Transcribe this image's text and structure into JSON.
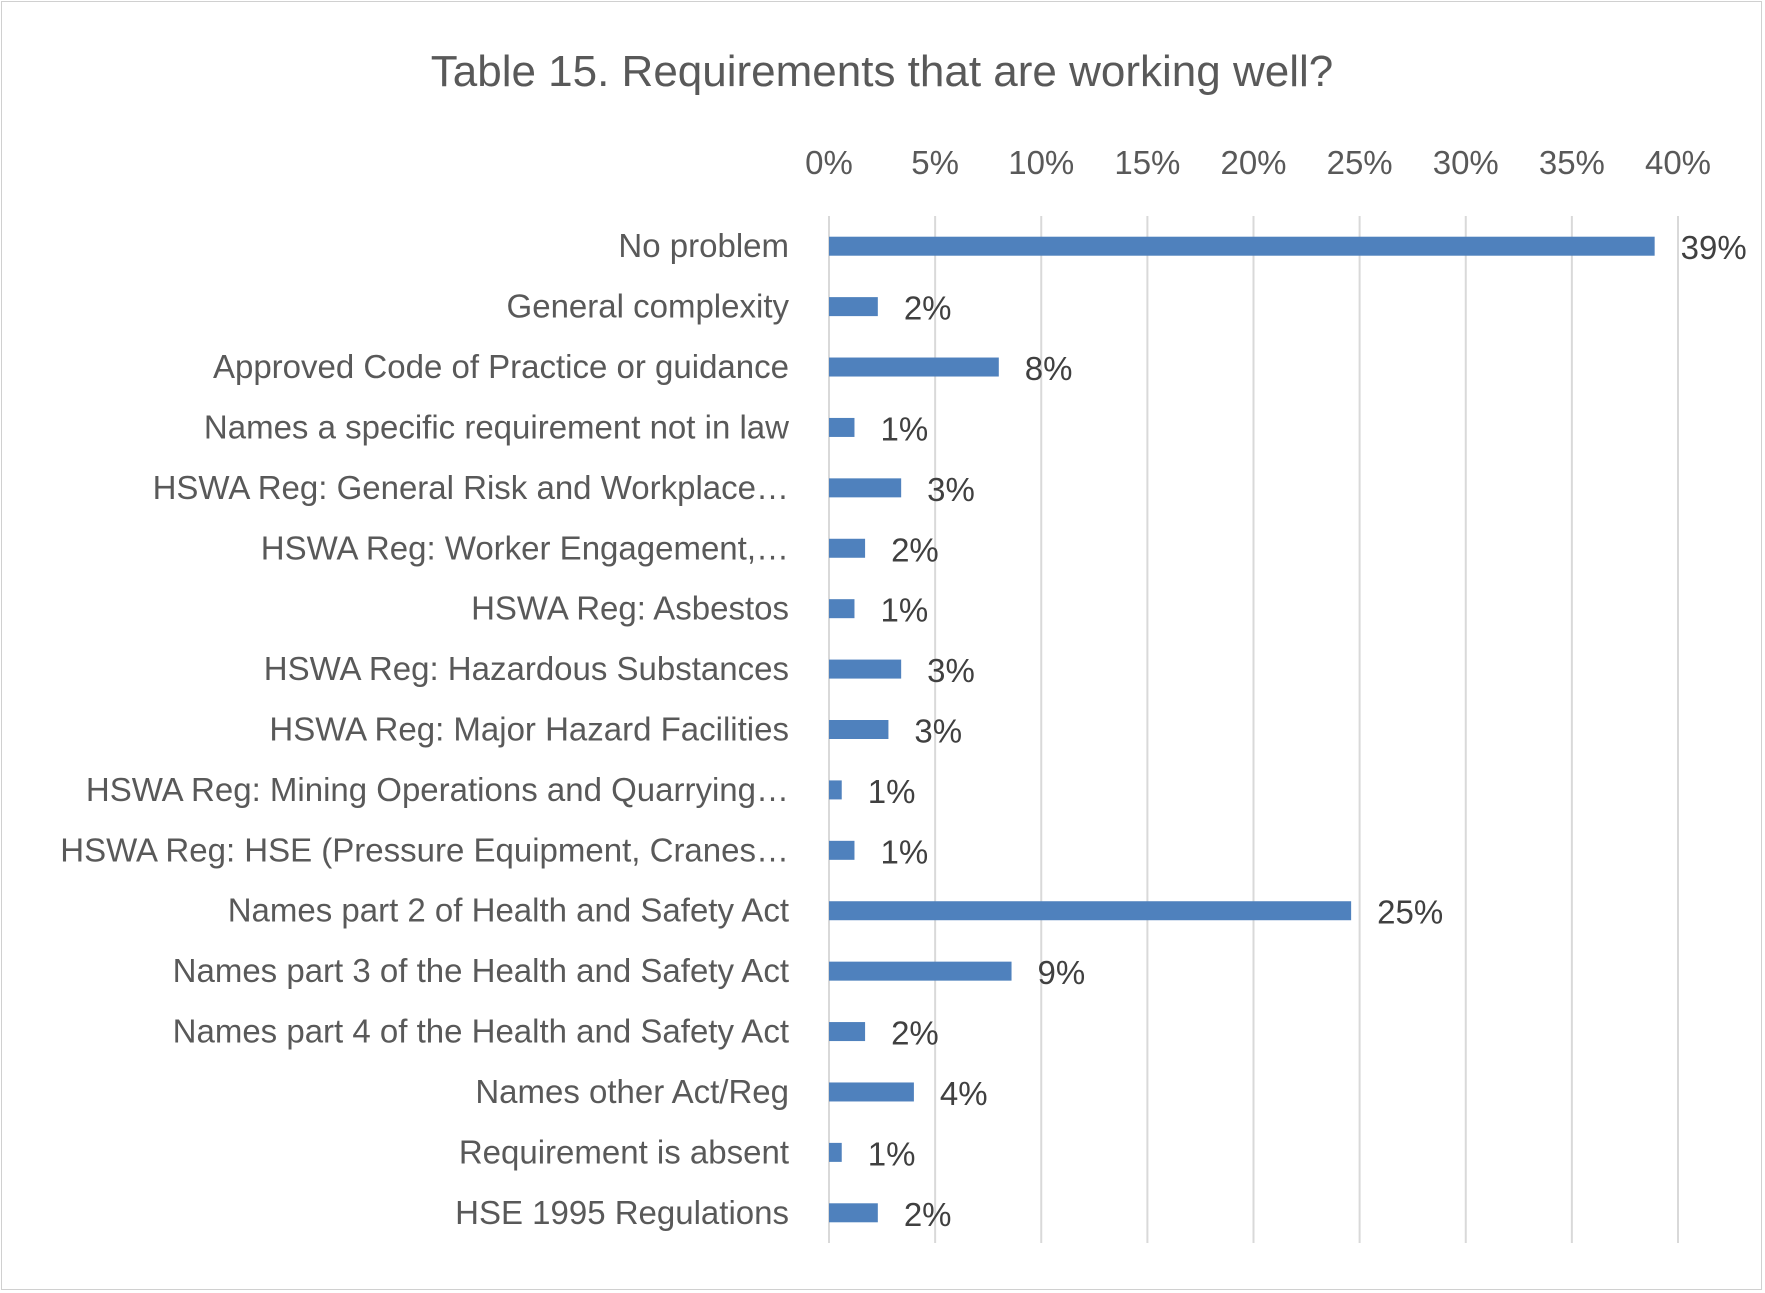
{
  "chart_data": {
    "type": "bar",
    "orientation": "horizontal",
    "title": "Table 15. Requirements that are working well?",
    "xlabel": "",
    "ylabel": "",
    "xlim": [
      0,
      0.4
    ],
    "x_ticks": [
      "0%",
      "5%",
      "10%",
      "15%",
      "20%",
      "25%",
      "30%",
      "35%",
      "40%"
    ],
    "x_tick_values": [
      0,
      0.05,
      0.1,
      0.15,
      0.2,
      0.25,
      0.3,
      0.35,
      0.4
    ],
    "x_axis_position": "top",
    "grid": true,
    "legend": "none",
    "bar_color": "#4f81bd",
    "categories": [
      "No problem",
      "General complexity",
      "Approved Code of Practice or guidance",
      "Names a specific requirement not in law",
      "HSWA Reg: General Risk and Workplace…",
      "HSWA Reg: Worker Engagement,…",
      "HSWA Reg: Asbestos",
      "HSWA Reg: Hazardous Substances",
      "HSWA Reg: Major Hazard Facilities",
      "HSWA Reg: Mining Operations and Quarrying…",
      "HSWA Reg: HSE (Pressure Equipment, Cranes…",
      "Names part 2 of Health and Safety Act",
      "Names part 3 of the Health and Safety Act",
      "Names part 4 of the Health and Safety Act",
      "Names other Act/Reg",
      "Requirement is absent",
      "HSE 1995 Regulations"
    ],
    "values": [
      0.389,
      0.023,
      0.08,
      0.012,
      0.034,
      0.017,
      0.012,
      0.034,
      0.028,
      0.006,
      0.012,
      0.246,
      0.086,
      0.017,
      0.04,
      0.006,
      0.023
    ],
    "data_labels": [
      "39%",
      "2%",
      "8%",
      "1%",
      "3%",
      "2%",
      "1%",
      "3%",
      "3%",
      "1%",
      "1%",
      "25%",
      "9%",
      "2%",
      "4%",
      "1%",
      "2%"
    ]
  }
}
